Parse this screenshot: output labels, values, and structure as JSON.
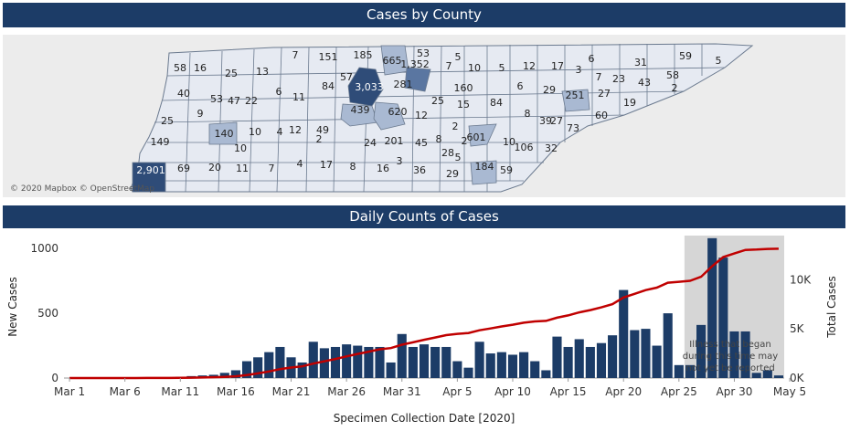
{
  "map": {
    "title": "Cases by County",
    "attribution": "© 2020 Mapbox © OpenStreetMap",
    "county_labels": [
      "58",
      "16",
      "25",
      "13",
      "7",
      "151",
      "185",
      "665",
      "53",
      "5",
      "40",
      "53",
      "22",
      "6",
      "11",
      "84",
      "57",
      "3,033",
      "1,352",
      "281",
      "7",
      "10",
      "5",
      "12",
      "17",
      "6",
      "31",
      "59",
      "5",
      "3",
      "7",
      "23",
      "43",
      "58",
      "2",
      "160",
      "6",
      "29",
      "251",
      "27",
      "19",
      "25",
      "9",
      "47",
      "439",
      "620",
      "12",
      "25",
      "15",
      "84",
      "8",
      "60",
      "27",
      "140",
      "10",
      "4",
      "12",
      "49",
      "2",
      "8",
      "2",
      "601",
      "39",
      "73",
      "149",
      "2",
      "24",
      "201",
      "45",
      "10",
      "106",
      "32",
      "10",
      "2,901",
      "69",
      "20",
      "11",
      "7",
      "4",
      "17",
      "8",
      "16",
      "3",
      "36",
      "28",
      "29",
      "5",
      "184",
      "59"
    ],
    "colors": {
      "low": "#e6eaf2",
      "mid": "#a9b9d2",
      "high": "#5a76a1",
      "max": "#2f4c78",
      "border": "#6b7a8f"
    }
  },
  "chart": {
    "title": "Daily Counts of Cases",
    "xlabel": "Specimen Collection Date [2020]",
    "ylabel_left": "New Cases",
    "ylabel_right": "Total Cases",
    "left_ticks": [
      "0",
      "500",
      "1000"
    ],
    "right_ticks": [
      "0K",
      "5K",
      "10K"
    ],
    "x_ticks": [
      "Mar 1",
      "Mar 6",
      "Mar 11",
      "Mar 16",
      "Mar 21",
      "Mar 26",
      "Mar 31",
      "Apr 5",
      "Apr 10",
      "Apr 15",
      "Apr 20",
      "Apr 25",
      "Apr 30",
      "May 5"
    ],
    "annotation": [
      "Illness that began",
      "during this time may",
      "not yet be reported"
    ],
    "colors": {
      "bar": "#1c3c67",
      "line": "#c00000",
      "shade": "#d6d6d6"
    }
  },
  "chart_data": {
    "type": "bar",
    "x_start": "2020-03-01",
    "categories": [
      "Mar 1",
      "Mar 2",
      "Mar 3",
      "Mar 4",
      "Mar 5",
      "Mar 6",
      "Mar 7",
      "Mar 8",
      "Mar 9",
      "Mar 10",
      "Mar 11",
      "Mar 12",
      "Mar 13",
      "Mar 14",
      "Mar 15",
      "Mar 16",
      "Mar 17",
      "Mar 18",
      "Mar 19",
      "Mar 20",
      "Mar 21",
      "Mar 22",
      "Mar 23",
      "Mar 24",
      "Mar 25",
      "Mar 26",
      "Mar 27",
      "Mar 28",
      "Mar 29",
      "Mar 30",
      "Mar 31",
      "Apr 1",
      "Apr 2",
      "Apr 3",
      "Apr 4",
      "Apr 5",
      "Apr 6",
      "Apr 7",
      "Apr 8",
      "Apr 9",
      "Apr 10",
      "Apr 11",
      "Apr 12",
      "Apr 13",
      "Apr 14",
      "Apr 15",
      "Apr 16",
      "Apr 17",
      "Apr 18",
      "Apr 19",
      "Apr 20",
      "Apr 21",
      "Apr 22",
      "Apr 23",
      "Apr 24",
      "Apr 25",
      "Apr 26",
      "Apr 27",
      "Apr 28",
      "Apr 29",
      "Apr 30",
      "May 1",
      "May 2",
      "May 3",
      "May 4"
    ],
    "series": [
      {
        "name": "New Cases",
        "axis": "left",
        "type": "bar",
        "values": [
          0,
          0,
          0,
          0,
          1,
          1,
          1,
          2,
          2,
          3,
          10,
          15,
          20,
          25,
          40,
          60,
          130,
          160,
          200,
          240,
          160,
          120,
          280,
          230,
          240,
          260,
          250,
          240,
          240,
          120,
          340,
          240,
          260,
          240,
          240,
          130,
          80,
          280,
          190,
          200,
          180,
          200,
          130,
          60,
          320,
          240,
          300,
          240,
          270,
          330,
          680,
          370,
          380,
          250,
          500,
          100,
          100,
          410,
          1080,
          930,
          360,
          360,
          40,
          60,
          20
        ]
      },
      {
        "name": "Total Cases",
        "axis": "right",
        "type": "line",
        "values": [
          0,
          0,
          0,
          0,
          1,
          2,
          3,
          5,
          7,
          10,
          20,
          35,
          55,
          80,
          120,
          180,
          310,
          470,
          670,
          910,
          1070,
          1190,
          1470,
          1700,
          1940,
          2200,
          2450,
          2690,
          2930,
          3050,
          3390,
          3630,
          3890,
          4130,
          4370,
          4500,
          4580,
          4860,
          5050,
          5250,
          5430,
          5630,
          5760,
          5820,
          6140,
          6380,
          6680,
          6920,
          7190,
          7520,
          8200,
          8570,
          8950,
          9200,
          9700,
          9800,
          9900,
          10310,
          11390,
          12320,
          12680,
          13040,
          13080,
          13140,
          13160
        ]
      }
    ],
    "left_ylim": [
      0,
      1100
    ],
    "right_ylim": [
      0,
      14500
    ],
    "shaded_range": [
      "Apr 26",
      "May 4"
    ]
  }
}
